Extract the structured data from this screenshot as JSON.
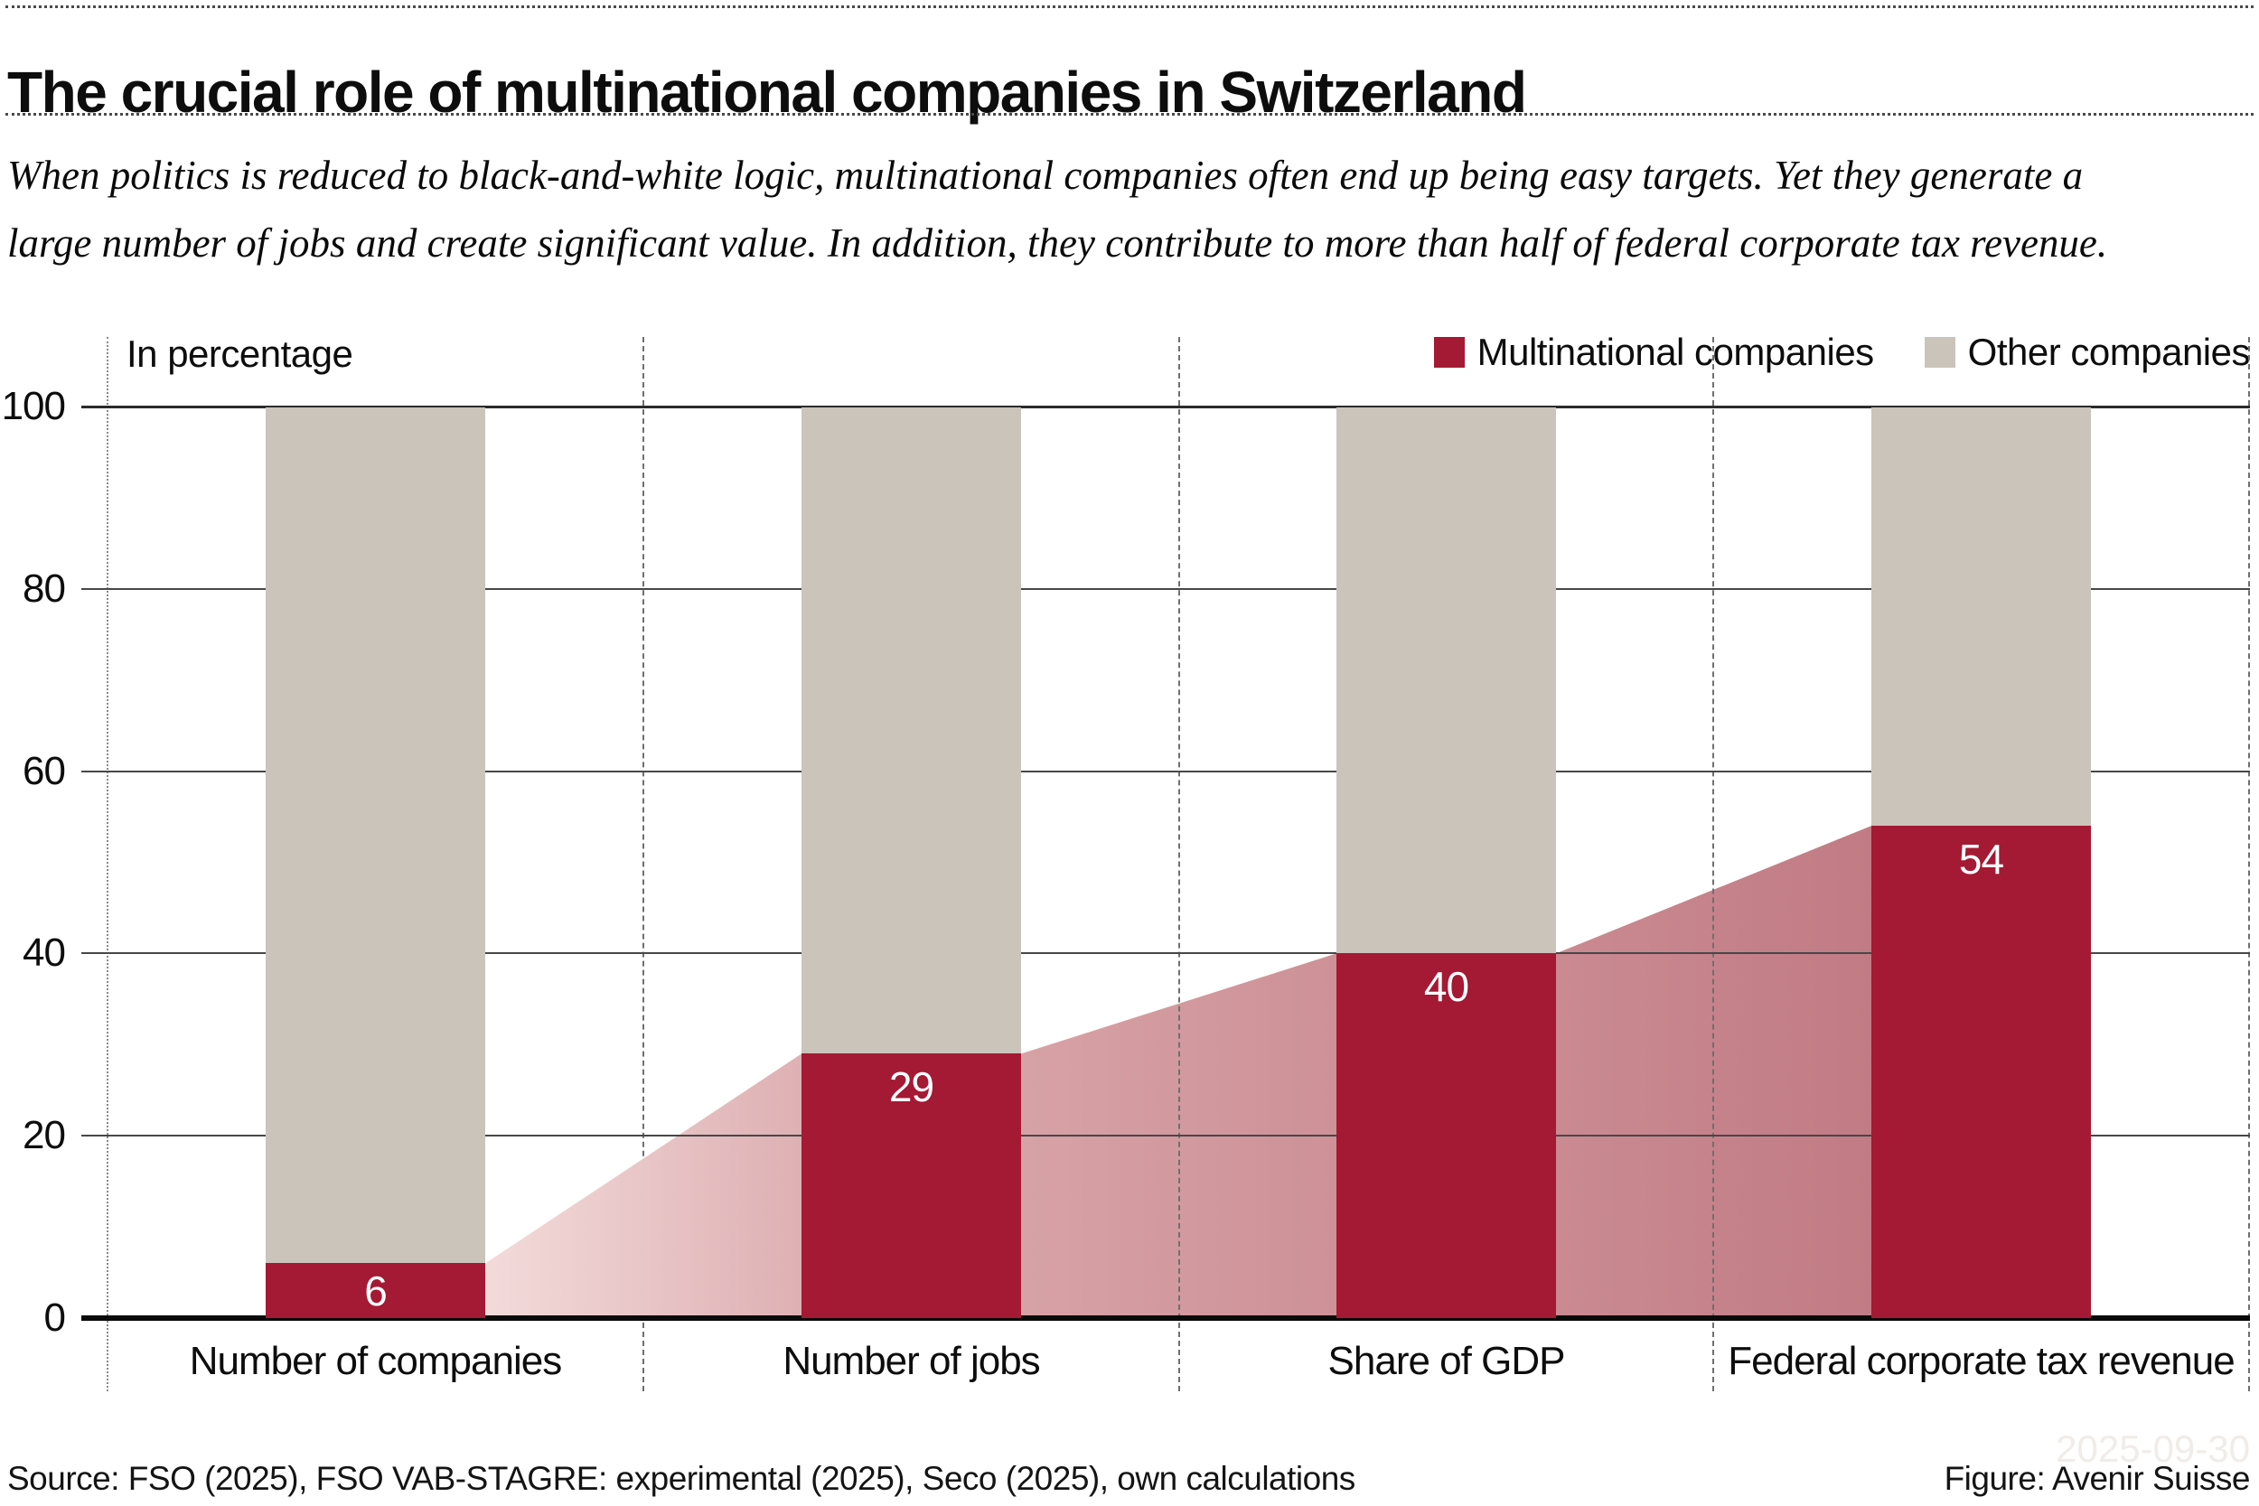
{
  "header": {
    "title": "The crucial role of multinational companies in Switzerland",
    "subtitle_lines": [
      "When politics is reduced to black-and-white logic, multinational companies often end up being easy targets. Yet they generate a",
      "large number of jobs and create significant value. In addition, they contribute to more than half of federal corporate tax revenue."
    ]
  },
  "chart": {
    "unit_label": "In percentage",
    "legend": [
      {
        "label": "Multinational companies",
        "color": "#a41933"
      },
      {
        "label": "Other companies",
        "color": "#cbc4bb"
      }
    ],
    "colors": {
      "multinational_red": "#a41933",
      "other_beige": "#cbc4bb",
      "connector_gradients": [
        [
          "#f3dbda",
          "#deb0b4"
        ],
        [
          "#d7a2a6",
          "#cd9197"
        ],
        [
          "#ca8a91",
          "#c17b84"
        ]
      ],
      "gridline": "#474747",
      "axis": "#0a0a0a"
    }
  },
  "chart_data": {
    "type": "bar",
    "stacked": true,
    "title": "The crucial role of multinational companies in Switzerland",
    "ylabel": "In percentage",
    "ylim": [
      0,
      100
    ],
    "yticks": [
      0,
      20,
      40,
      60,
      80,
      100
    ],
    "grid": "horizontal solid + dashed vertical category separators",
    "legend_position": "top-right",
    "categories": [
      "Number of companies",
      "Number of jobs",
      "Share of GDP",
      "Federal corporate tax revenue"
    ],
    "series": [
      {
        "name": "Multinational companies",
        "values": [
          6,
          29,
          40,
          54
        ]
      },
      {
        "name": "Other companies",
        "values": [
          94,
          71,
          60,
          46
        ]
      }
    ],
    "bar_value_labels": [
      "6",
      "29",
      "40",
      "54"
    ],
    "connectors_between_bars": true
  },
  "footer": {
    "source": "Source: FSO (2025), FSO VAB-STAGRE: experimental (2025), Seco (2025), own calculations",
    "credit": "Figure: Avenir Suisse",
    "watermark": "2025-09-30"
  }
}
